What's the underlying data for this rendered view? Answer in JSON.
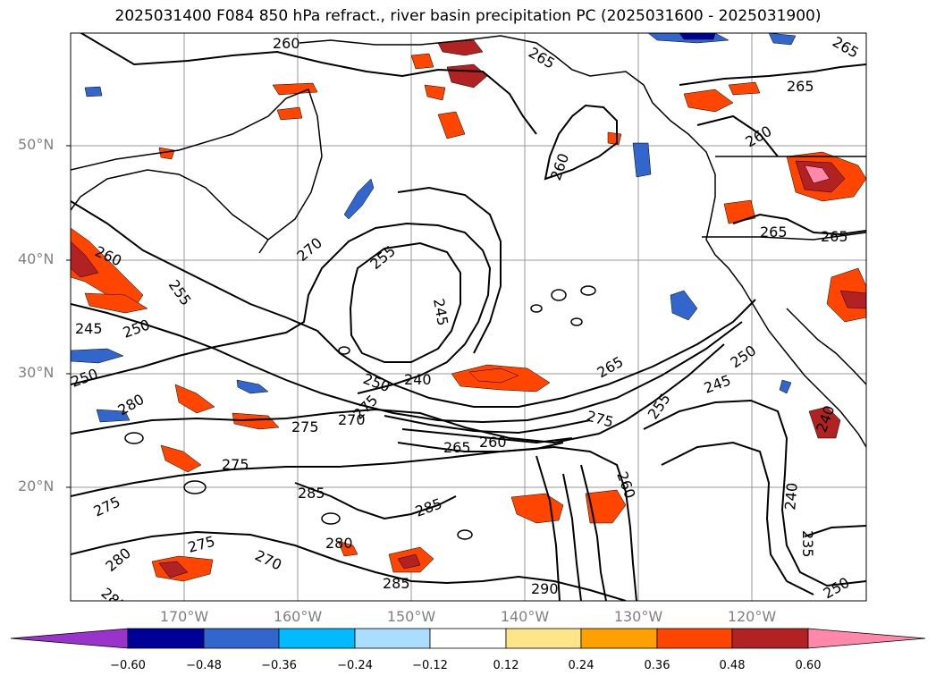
{
  "title": "2025031400 F084 850 hPa refract., river basin precipitation PC (2025031600 - 2025031900)",
  "lat_labels": [
    "50°N",
    "40°N",
    "30°N",
    "20°N"
  ],
  "lon_labels": [
    "170°W",
    "160°W",
    "150°W",
    "140°W",
    "130°W",
    "120°W"
  ],
  "colorbar": {
    "ticks": [
      "−0.60",
      "−0.48",
      "−0.36",
      "−0.24",
      "−0.12",
      "0.12",
      "0.24",
      "0.36",
      "0.48",
      "0.60"
    ],
    "colors": [
      "#9933cc",
      "#000099",
      "#3366cc",
      "#00bbff",
      "#aaddff",
      "#ffffff",
      "#ffe58a",
      "#ffa000",
      "#ff4500",
      "#b22222",
      "#ff88aa"
    ]
  },
  "contour_labels": {
    "c1": "260",
    "c2": "265",
    "c3": "265",
    "c4": "265",
    "c5": "260",
    "c6": "260",
    "c7": "265",
    "c8": "265",
    "c9": "260",
    "c10": "255",
    "c11": "270",
    "c12": "255",
    "c13": "245",
    "c14": "250",
    "c15": "250",
    "c16": "245",
    "c17": "240",
    "c18": "250",
    "c19": "265",
    "c20": "250",
    "c21": "245",
    "c22": "255",
    "c23": "275",
    "c24": "280",
    "c25": "275",
    "c26": "270",
    "c27": "275",
    "c28": "265",
    "c29": "260",
    "c30": "275",
    "c31": "285",
    "c32": "275",
    "c33": "285",
    "c34": "260",
    "c35": "240",
    "c36": "235",
    "c37": "275",
    "c38": "280",
    "c39": "270",
    "c40": "280",
    "c41": "285",
    "c42": "285",
    "c43": "290",
    "c44": "240",
    "c45": "250"
  }
}
